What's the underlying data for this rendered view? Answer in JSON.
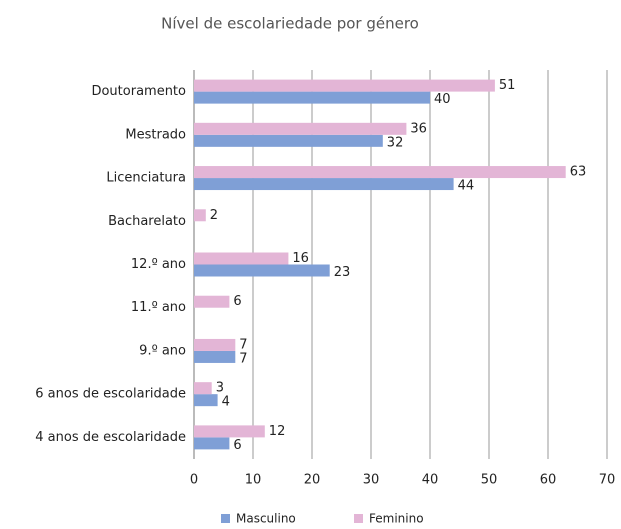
{
  "chart_data": {
    "type": "barh",
    "title": "Nível de escolariedade por género",
    "categories": [
      "Doutoramento",
      "Mestrado",
      "Licenciatura",
      "Bacharelato",
      "12.º ano",
      "11.º ano",
      "9.º ano",
      "6 anos de escolaridade",
      "4 anos de escolaridade"
    ],
    "series": [
      {
        "name": "Masculino",
        "color": "#7f9fd6",
        "values": [
          40,
          32,
          44,
          null,
          23,
          null,
          7,
          4,
          6
        ]
      },
      {
        "name": "Feminino",
        "color": "#e3b5d6",
        "values": [
          51,
          36,
          63,
          2,
          16,
          6,
          7,
          3,
          12
        ]
      }
    ],
    "xlim": [
      0,
      70
    ],
    "xticks": [
      0,
      10,
      20,
      30,
      40,
      50,
      60,
      70
    ],
    "grid": true,
    "legend": "bottom"
  }
}
